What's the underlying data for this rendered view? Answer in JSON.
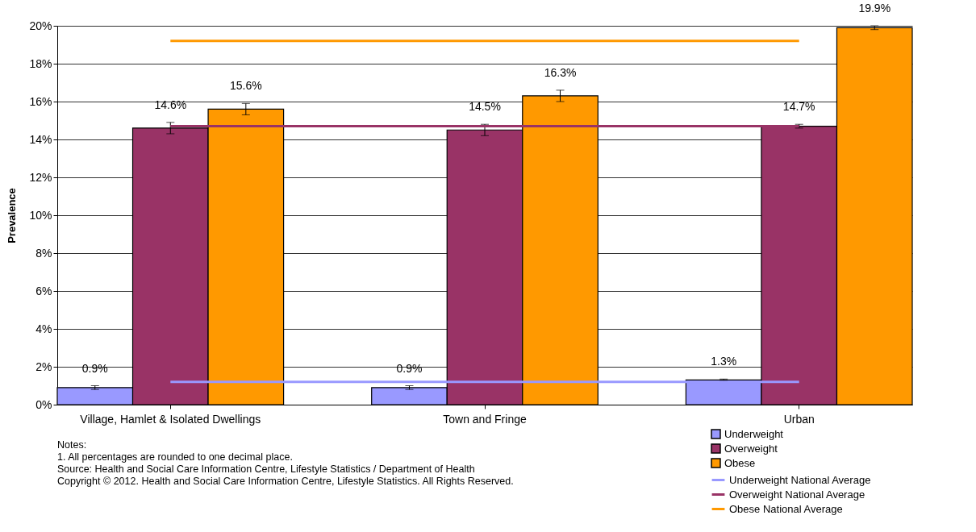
{
  "chart_data": {
    "type": "bar",
    "ylabel": "Prevalence",
    "categories": [
      "Village, Hamlet & Isolated Dwellings",
      "Town and Fringe",
      "Urban"
    ],
    "series": [
      {
        "name": "Underweight",
        "color": "#9999ff",
        "values": [
          0.9,
          0.9,
          1.3
        ],
        "errors": [
          0.1,
          0.1,
          0.05
        ],
        "value_labels": [
          "0.9%",
          "0.9%",
          "1.3%"
        ]
      },
      {
        "name": "Overweight",
        "color": "#993366",
        "values": [
          14.6,
          14.5,
          14.7
        ],
        "errors": [
          0.3,
          0.3,
          0.1
        ],
        "value_labels": [
          "14.6%",
          "14.5%",
          "14.7%"
        ]
      },
      {
        "name": "Obese",
        "color": "#ff9900",
        "values": [
          15.6,
          16.3,
          19.9
        ],
        "errors": [
          0.3,
          0.3,
          0.1
        ],
        "value_labels": [
          "15.6%",
          "16.3%",
          "19.9%"
        ]
      },
      {
        "name": "Underweight National Average",
        "type": "line",
        "color": "#9999ff",
        "values": [
          1.2,
          1.2,
          1.2
        ]
      },
      {
        "name": "Overweight National Average",
        "type": "line",
        "color": "#993366",
        "values": [
          14.7,
          14.7,
          14.7
        ]
      },
      {
        "name": "Obese National Average",
        "type": "line",
        "color": "#ff9900",
        "values": [
          19.2,
          19.2,
          19.2
        ]
      }
    ],
    "ylim": [
      0,
      20
    ],
    "yticks": [
      {
        "value": 0,
        "label": "0%"
      },
      {
        "value": 2,
        "label": "2%"
      },
      {
        "value": 4,
        "label": "4%"
      },
      {
        "value": 6,
        "label": "6%"
      },
      {
        "value": 8,
        "label": "8%"
      },
      {
        "value": 10,
        "label": "10%"
      },
      {
        "value": 12,
        "label": "12%"
      },
      {
        "value": 14,
        "label": "14%"
      },
      {
        "value": 16,
        "label": "16%"
      },
      {
        "value": 18,
        "label": "18%"
      },
      {
        "value": 20,
        "label": "20%"
      }
    ],
    "grid": "y",
    "legend": "bottom right",
    "annotations": [
      "Notes:",
      "1. All percentages are rounded to one decimal place.",
      "Source: Health and Social Care Information Centre, Lifestyle Statistics / Department of Health",
      "Copyright © 2012. Health and Social Care Information Centre, Lifestyle Statistics. All Rights Reserved."
    ]
  }
}
